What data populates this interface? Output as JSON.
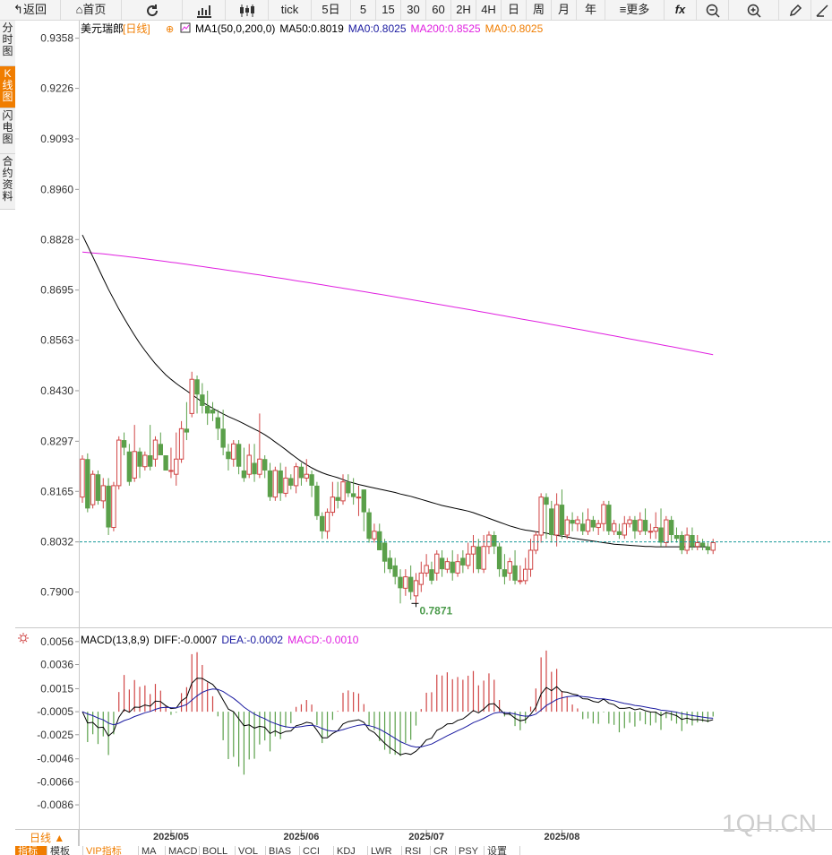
{
  "toolbar": {
    "back": "返回",
    "home": "首页",
    "tick": "tick",
    "periods": [
      "5日",
      "5",
      "15",
      "30",
      "60",
      "2H",
      "4H",
      "日",
      "周",
      "月",
      "年"
    ],
    "more": "更多",
    "fx": "fx"
  },
  "side_tabs": [
    "分时图",
    "K线图",
    "闪电图",
    "合约资料"
  ],
  "bottom_tabs": [
    "指标",
    "模板",
    "VIP指标",
    "MA",
    "MACD",
    "BOLL",
    "VOL",
    "BIAS",
    "CCI",
    "KDJ",
    "LWR",
    "RSI",
    "CR",
    "PSY",
    "设置"
  ],
  "period_label": "日线",
  "watermark": "1QH.CN",
  "colors": {
    "up": "#d04545",
    "down": "#5aa04a",
    "ma50": "#000000",
    "ma200": "#e020e0",
    "diff": "#000000",
    "dea": "#1a1aa0",
    "last_line": "#1a9a9a"
  },
  "chart_data": [
    {
      "type": "candlestick",
      "symbol": "美元瑞郎",
      "period": "[日线]",
      "legend": [
        {
          "text": "MA1(50,0,200,0)",
          "color": "#000000"
        },
        {
          "text": "MA50:0.8019",
          "color": "#000000"
        },
        {
          "text": "MA0:0.8025",
          "color": "#1a1aa0"
        },
        {
          "text": "MA200:0.8525",
          "color": "#e020e0"
        },
        {
          "text": "MA0:0.8025",
          "color": "#f07d00"
        }
      ],
      "y_ticks": [
        "0.9358",
        "0.9226",
        "0.9093",
        "0.8960",
        "0.8828",
        "0.8695",
        "0.8563",
        "0.8430",
        "0.8297",
        "0.8165",
        "0.8032",
        "0.7900"
      ],
      "ylim": [
        0.7807,
        0.9402
      ],
      "x_labels": [
        "2025/05",
        "2025/06",
        "2025/07",
        "2025/08"
      ],
      "x_label_index": [
        17,
        42,
        66,
        92
      ],
      "low_label": "0.7871",
      "low_index": 64,
      "last_price": 0.8032,
      "candles": [
        [
          0.815,
          0.825,
          0.8135,
          0.826
        ],
        [
          0.825,
          0.812,
          0.811,
          0.8265
        ],
        [
          0.813,
          0.821,
          0.812,
          0.822
        ],
        [
          0.821,
          0.814,
          0.813,
          0.822
        ],
        [
          0.814,
          0.818,
          0.812,
          0.82
        ],
        [
          0.818,
          0.807,
          0.805,
          0.82
        ],
        [
          0.807,
          0.818,
          0.806,
          0.819
        ],
        [
          0.818,
          0.83,
          0.817,
          0.831
        ],
        [
          0.83,
          0.828,
          0.826,
          0.832
        ],
        [
          0.827,
          0.819,
          0.818,
          0.829
        ],
        [
          0.82,
          0.827,
          0.819,
          0.834
        ],
        [
          0.827,
          0.823,
          0.82,
          0.828
        ],
        [
          0.823,
          0.826,
          0.822,
          0.827
        ],
        [
          0.826,
          0.823,
          0.822,
          0.834
        ],
        [
          0.825,
          0.83,
          0.823,
          0.831
        ],
        [
          0.829,
          0.826,
          0.826,
          0.832
        ],
        [
          0.826,
          0.822,
          0.822,
          0.826
        ],
        [
          0.822,
          0.822,
          0.82,
          0.828
        ],
        [
          0.821,
          0.825,
          0.818,
          0.832
        ],
        [
          0.825,
          0.833,
          0.824,
          0.835
        ],
        [
          0.833,
          0.832,
          0.83,
          0.84
        ],
        [
          0.837,
          0.846,
          0.836,
          0.848
        ],
        [
          0.846,
          0.842,
          0.837,
          0.847
        ],
        [
          0.842,
          0.839,
          0.837,
          0.845
        ],
        [
          0.839,
          0.837,
          0.834,
          0.843
        ],
        [
          0.838,
          0.837,
          0.835,
          0.84
        ],
        [
          0.836,
          0.833,
          0.83,
          0.838
        ],
        [
          0.833,
          0.828,
          0.826,
          0.838
        ],
        [
          0.827,
          0.825,
          0.822,
          0.829
        ],
        [
          0.825,
          0.829,
          0.823,
          0.83
        ],
        [
          0.829,
          0.823,
          0.821,
          0.83
        ],
        [
          0.822,
          0.82,
          0.819,
          0.828
        ],
        [
          0.821,
          0.826,
          0.82,
          0.829
        ],
        [
          0.824,
          0.821,
          0.819,
          0.829
        ],
        [
          0.821,
          0.825,
          0.82,
          0.837
        ],
        [
          0.825,
          0.822,
          0.82,
          0.826
        ],
        [
          0.822,
          0.815,
          0.814,
          0.824
        ],
        [
          0.815,
          0.822,
          0.814,
          0.823
        ],
        [
          0.822,
          0.816,
          0.814,
          0.824
        ],
        [
          0.816,
          0.82,
          0.815,
          0.823
        ],
        [
          0.82,
          0.818,
          0.817,
          0.821
        ],
        [
          0.818,
          0.823,
          0.816,
          0.824
        ],
        [
          0.823,
          0.82,
          0.818,
          0.824
        ],
        [
          0.82,
          0.821,
          0.819,
          0.825
        ],
        [
          0.821,
          0.818,
          0.815,
          0.822
        ],
        [
          0.818,
          0.81,
          0.809,
          0.819
        ],
        [
          0.81,
          0.806,
          0.804,
          0.811
        ],
        [
          0.806,
          0.811,
          0.804,
          0.812
        ],
        [
          0.811,
          0.815,
          0.81,
          0.819
        ],
        [
          0.815,
          0.814,
          0.812,
          0.819
        ],
        [
          0.814,
          0.819,
          0.813,
          0.821
        ],
        [
          0.819,
          0.816,
          0.815,
          0.821
        ],
        [
          0.816,
          0.815,
          0.813,
          0.82
        ],
        [
          0.815,
          0.815,
          0.81,
          0.818
        ],
        [
          0.817,
          0.811,
          0.806,
          0.817
        ],
        [
          0.811,
          0.804,
          0.803,
          0.812
        ],
        [
          0.804,
          0.806,
          0.803,
          0.808
        ],
        [
          0.806,
          0.801,
          0.801,
          0.808
        ],
        [
          0.803,
          0.798,
          0.795,
          0.804
        ],
        [
          0.799,
          0.796,
          0.795,
          0.801
        ],
        [
          0.797,
          0.794,
          0.792,
          0.799
        ],
        [
          0.794,
          0.791,
          0.787,
          0.796
        ],
        [
          0.791,
          0.794,
          0.789,
          0.796
        ],
        [
          0.794,
          0.79,
          0.788,
          0.797
        ],
        [
          0.789,
          0.793,
          0.787,
          0.795
        ],
        [
          0.792,
          0.795,
          0.79,
          0.798
        ],
        [
          0.795,
          0.797,
          0.794,
          0.8
        ],
        [
          0.796,
          0.793,
          0.792,
          0.798
        ],
        [
          0.795,
          0.8,
          0.793,
          0.801
        ],
        [
          0.799,
          0.796,
          0.794,
          0.801
        ],
        [
          0.796,
          0.798,
          0.795,
          0.799
        ],
        [
          0.798,
          0.795,
          0.793,
          0.801
        ],
        [
          0.795,
          0.798,
          0.794,
          0.8
        ],
        [
          0.799,
          0.797,
          0.795,
          0.801
        ],
        [
          0.797,
          0.8,
          0.796,
          0.803
        ],
        [
          0.8,
          0.802,
          0.795,
          0.805
        ],
        [
          0.802,
          0.796,
          0.795,
          0.804
        ],
        [
          0.796,
          0.802,
          0.795,
          0.805
        ],
        [
          0.802,
          0.805,
          0.8,
          0.806
        ],
        [
          0.805,
          0.802,
          0.8,
          0.806
        ],
        [
          0.802,
          0.796,
          0.794,
          0.803
        ],
        [
          0.796,
          0.794,
          0.792,
          0.8
        ],
        [
          0.795,
          0.798,
          0.793,
          0.799
        ],
        [
          0.797,
          0.793,
          0.792,
          0.801
        ],
        [
          0.793,
          0.793,
          0.792,
          0.797
        ],
        [
          0.793,
          0.796,
          0.792,
          0.799
        ],
        [
          0.796,
          0.801,
          0.794,
          0.804
        ],
        [
          0.801,
          0.805,
          0.8,
          0.806
        ],
        [
          0.805,
          0.815,
          0.803,
          0.816
        ],
        [
          0.815,
          0.813,
          0.804,
          0.816
        ],
        [
          0.812,
          0.805,
          0.803,
          0.814
        ],
        [
          0.805,
          0.813,
          0.802,
          0.816
        ],
        [
          0.813,
          0.805,
          0.804,
          0.817
        ],
        [
          0.805,
          0.809,
          0.804,
          0.81
        ],
        [
          0.809,
          0.808,
          0.806,
          0.811
        ],
        [
          0.808,
          0.809,
          0.806,
          0.81
        ],
        [
          0.808,
          0.806,
          0.805,
          0.811
        ],
        [
          0.806,
          0.809,
          0.805,
          0.812
        ],
        [
          0.809,
          0.807,
          0.806,
          0.81
        ],
        [
          0.807,
          0.808,
          0.805,
          0.809
        ],
        [
          0.808,
          0.813,
          0.806,
          0.814
        ],
        [
          0.813,
          0.806,
          0.805,
          0.814
        ],
        [
          0.806,
          0.808,
          0.805,
          0.809
        ],
        [
          0.806,
          0.805,
          0.804,
          0.808
        ],
        [
          0.805,
          0.808,
          0.804,
          0.81
        ],
        [
          0.808,
          0.809,
          0.807,
          0.81
        ],
        [
          0.809,
          0.806,
          0.804,
          0.81
        ],
        [
          0.806,
          0.809,
          0.805,
          0.811
        ],
        [
          0.809,
          0.806,
          0.805,
          0.812
        ],
        [
          0.806,
          0.806,
          0.804,
          0.808
        ],
        [
          0.806,
          0.807,
          0.804,
          0.811
        ],
        [
          0.807,
          0.803,
          0.802,
          0.812
        ],
        [
          0.803,
          0.809,
          0.802,
          0.81
        ],
        [
          0.809,
          0.805,
          0.803,
          0.81
        ],
        [
          0.805,
          0.804,
          0.803,
          0.807
        ],
        [
          0.805,
          0.801,
          0.8,
          0.806
        ],
        [
          0.801,
          0.805,
          0.8,
          0.807
        ],
        [
          0.805,
          0.802,
          0.801,
          0.807
        ],
        [
          0.802,
          0.803,
          0.801,
          0.805
        ],
        [
          0.803,
          0.802,
          0.801,
          0.804
        ],
        [
          0.802,
          0.801,
          0.8,
          0.803
        ],
        [
          0.801,
          0.803,
          0.8,
          0.804
        ]
      ],
      "ma50": [
        0.884,
        0.8812,
        0.8783,
        0.8754,
        0.8725,
        0.8697,
        0.8671,
        0.8645,
        0.8621,
        0.8598,
        0.8576,
        0.8555,
        0.8536,
        0.8518,
        0.8501,
        0.8486,
        0.8472,
        0.846,
        0.8449,
        0.8439,
        0.843,
        0.842,
        0.841,
        0.84,
        0.8392,
        0.8384,
        0.8376,
        0.8369,
        0.8362,
        0.8356,
        0.835,
        0.8343,
        0.8336,
        0.8329,
        0.8322,
        0.8314,
        0.8305,
        0.8295,
        0.8285,
        0.8275,
        0.8264,
        0.8254,
        0.8244,
        0.8235,
        0.8227,
        0.822,
        0.8214,
        0.8209,
        0.8205,
        0.8201,
        0.8196,
        0.8191,
        0.8187,
        0.8183,
        0.818,
        0.8177,
        0.8174,
        0.8171,
        0.8168,
        0.8165,
        0.8162,
        0.8158,
        0.8155,
        0.8152,
        0.8148,
        0.8144,
        0.814,
        0.8136,
        0.8132,
        0.8128,
        0.8125,
        0.8122,
        0.8119,
        0.8116,
        0.8113,
        0.8109,
        0.8104,
        0.8099,
        0.8094,
        0.8089,
        0.8084,
        0.8079,
        0.8074,
        0.807,
        0.8066,
        0.8063,
        0.8061,
        0.8059,
        0.8057,
        0.8055,
        0.8052,
        0.8049,
        0.8047,
        0.8045,
        0.8042,
        0.804,
        0.8038,
        0.8036,
        0.8034,
        0.8032,
        0.803,
        0.8028,
        0.8026,
        0.8025,
        0.8024,
        0.8023,
        0.8022,
        0.8021,
        0.802,
        0.802,
        0.8019,
        0.8019,
        0.8019,
        0.8019,
        0.8019,
        0.8019,
        0.8019,
        0.8019,
        0.8019,
        0.8019,
        0.8019
      ],
      "ma200_start": 0.8795,
      "ma200_end": 0.8525
    },
    {
      "type": "macd",
      "legend": [
        {
          "text": "MACD(13,8,9)",
          "color": "#000000"
        },
        {
          "text": "DIFF:-0.0007",
          "color": "#000000"
        },
        {
          "text": "DEA:-0.0002",
          "color": "#1a1aa0"
        },
        {
          "text": "MACD:-0.0010",
          "color": "#e020e0"
        }
      ],
      "y_ticks": [
        "0.0056",
        "0.0036",
        "0.0015",
        "-0.0005",
        "-0.0025",
        "-0.0046",
        "-0.0066",
        "-0.0086"
      ],
      "ylim": [
        -0.0107,
        0.0066
      ],
      "zero_value": -0.0005
    }
  ]
}
